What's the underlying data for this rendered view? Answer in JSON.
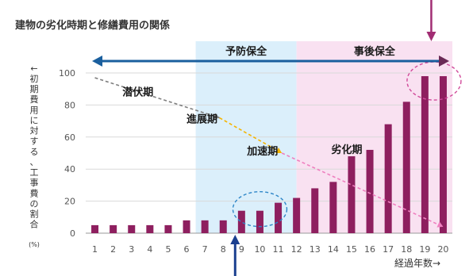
{
  "chart_data": {
    "type": "bar",
    "title": "建物の劣化時期と修繕費用の関係",
    "ylabel": "←初期費用に対する、工事費の割合",
    "ylabel_unit": "(%)",
    "xlabel": "経過年数→",
    "categories": [
      "1",
      "2",
      "3",
      "4",
      "5",
      "6",
      "7",
      "8",
      "9",
      "10",
      "11",
      "12",
      "13",
      "14",
      "15",
      "16",
      "17",
      "18",
      "19",
      "20"
    ],
    "values": [
      5,
      5,
      5,
      5,
      5,
      8,
      8,
      8,
      14,
      14,
      19,
      22,
      28,
      32,
      48,
      52,
      68,
      82,
      98,
      98
    ],
    "ylim": [
      0,
      100
    ],
    "yticks": [
      0,
      20,
      40,
      60,
      80,
      100
    ],
    "grid": true,
    "bar_color": "#8e1f5f",
    "regions": [
      {
        "label": "予防保全",
        "from_year": 6.5,
        "to_year": 12,
        "color": "#dbeffb",
        "label_color": "#1a1a1a"
      },
      {
        "label": "事後保全",
        "from_year": 12,
        "to_year": 20.5,
        "color": "#f9e1f1",
        "label_color": "#1a1a1a"
      }
    ],
    "phases": [
      {
        "label": "潜伏期",
        "from": [
          1,
          97
        ],
        "to": [
          7.8,
          72
        ],
        "line_color": "#7f7f7f",
        "text_year": 2.5,
        "text_value": 86
      },
      {
        "label": "進展期",
        "from": [
          7.8,
          72
        ],
        "to": [
          11.2,
          50
        ],
        "line_color": "#f5b400",
        "text_year": 6,
        "text_value": 69
      },
      {
        "label": "加速期",
        "from": [
          11.2,
          50
        ],
        "to": [
          20,
          4
        ],
        "line_color": "#ef7fbf",
        "text_year": 9.3,
        "text_value": 49
      },
      {
        "label": "劣化期",
        "from": null,
        "to": null,
        "line_color": "#ef7fbf",
        "text_year": 13.9,
        "text_value": 50
      }
    ],
    "arrow": {
      "from_year": 1.8,
      "to_year": 20.5,
      "color": "#1a5f9e"
    },
    "highlights": [
      {
        "center_year": 10,
        "center_value": 15,
        "color": "#2e86c8"
      },
      {
        "center_year": 19.5,
        "center_value": 95,
        "color": "#d14a9a"
      }
    ],
    "pointers": [
      {
        "color": "#1a3f8f",
        "direction": "up",
        "at_year": 8.65
      },
      {
        "color": "#a12d73",
        "direction": "down",
        "at_year": 19.35
      }
    ]
  }
}
